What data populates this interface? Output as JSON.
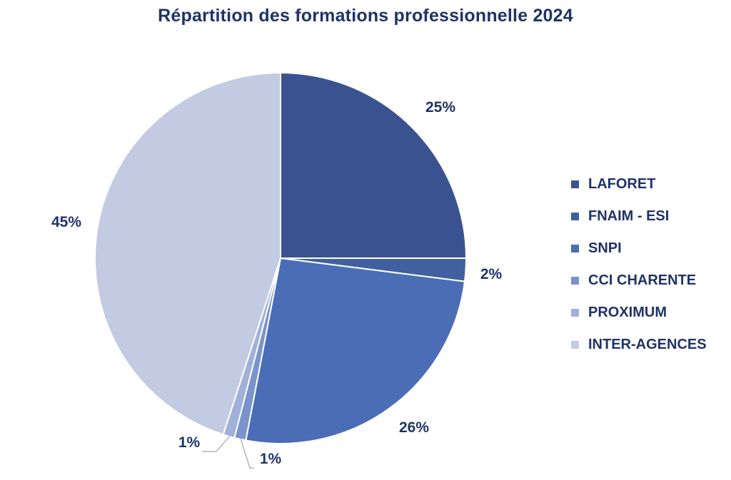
{
  "chart_data": {
    "type": "pie",
    "title": "Répartition des formations professionnelle 2024",
    "categories": [
      "LAFORET",
      "FNAIM - ESI",
      "SNPI",
      "CCI CHARENTE",
      "PROXIMUM",
      "INTER-AGENCES"
    ],
    "values": [
      25,
      2,
      26,
      1,
      1,
      45
    ],
    "labels": [
      "25%",
      "2%",
      "26%",
      "1%",
      "1%",
      "45%"
    ],
    "colors": [
      "#3a5390",
      "#40609f",
      "#4a6db6",
      "#7a93cb",
      "#a0b0d8",
      "#c3cbe2"
    ],
    "legend_position": "right"
  }
}
